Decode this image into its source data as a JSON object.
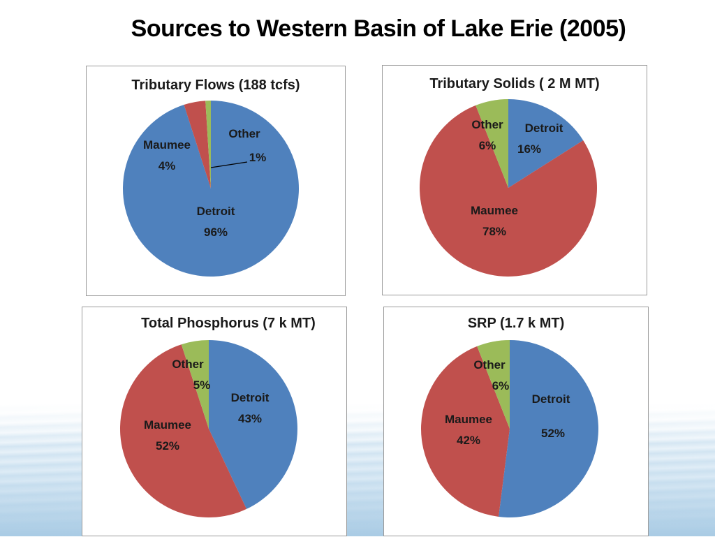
{
  "slide": {
    "title": "Sources to Western Basin of Lake Erie (2005)"
  },
  "colors": {
    "Detroit": "#4F81BD",
    "Maumee": "#C0504D",
    "Other": "#9BBB59"
  },
  "chart_data": [
    {
      "type": "pie",
      "title": "Tributary Flows (188 tcfs)",
      "categories": [
        "Detroit",
        "Maumee",
        "Other"
      ],
      "values": [
        96,
        4,
        1
      ],
      "labels": [
        {
          "name": "Detroit",
          "pct": "96%"
        },
        {
          "name": "Maumee",
          "pct": "4%"
        },
        {
          "name": "Other",
          "pct": "1%"
        }
      ]
    },
    {
      "type": "pie",
      "title": "Tributary  Solids ( 2 M MT)",
      "categories": [
        "Detroit",
        "Maumee",
        "Other"
      ],
      "values": [
        16,
        78,
        6
      ],
      "labels": [
        {
          "name": "Detroit",
          "pct": "16%"
        },
        {
          "name": "Maumee",
          "pct": "78%"
        },
        {
          "name": "Other",
          "pct": "6%"
        }
      ]
    },
    {
      "type": "pie",
      "title": "Total Phosphorus (7 k MT)",
      "categories": [
        "Detroit",
        "Maumee",
        "Other"
      ],
      "values": [
        43,
        52,
        5
      ],
      "labels": [
        {
          "name": "Detroit",
          "pct": "43%"
        },
        {
          "name": "Maumee",
          "pct": "52%"
        },
        {
          "name": "Other",
          "pct": "5%"
        }
      ]
    },
    {
      "type": "pie",
      "title": "SRP (1.7 k MT)",
      "categories": [
        "Detroit",
        "Maumee",
        "Other"
      ],
      "values": [
        52,
        42,
        6
      ],
      "labels": [
        {
          "name": "Detroit",
          "pct": "52%"
        },
        {
          "name": "Maumee",
          "pct": "42%"
        },
        {
          "name": "Other",
          "pct": "6%"
        }
      ]
    }
  ]
}
